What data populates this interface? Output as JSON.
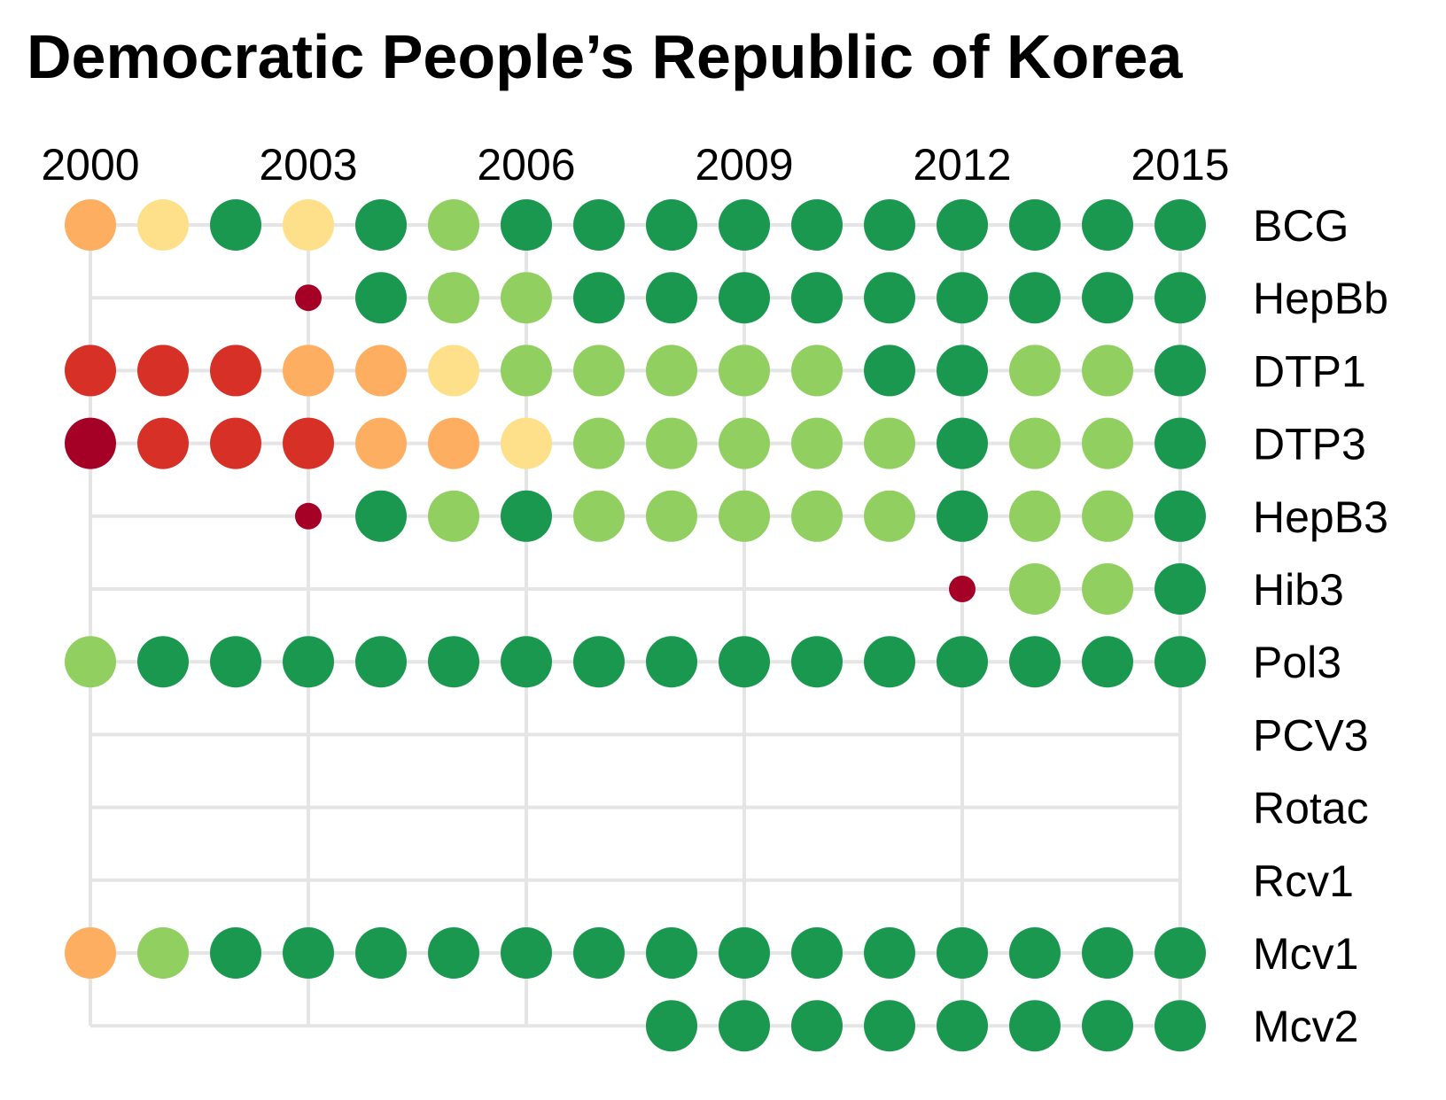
{
  "chart_data": {
    "type": "scatter",
    "title": "Democratic People’s Republic of Korea",
    "x_ticks": [
      "2000",
      "2003",
      "2006",
      "2009",
      "2012",
      "2015"
    ],
    "years": [
      2000,
      2001,
      2002,
      2003,
      2004,
      2005,
      2006,
      2007,
      2008,
      2009,
      2010,
      2011,
      2012,
      2013,
      2014,
      2015
    ],
    "grid": true,
    "colors": {
      "small": "#a50026",
      "red": "#d73027",
      "orange": "#fdae61",
      "yellow": "#fee08b",
      "lightgreen": "#91cf60",
      "green": "#1a9850",
      "gridline": "#e5e5e5"
    },
    "series": [
      {
        "name": "BCG",
        "values": [
          "orange",
          "yellow",
          "green",
          "yellow",
          "green",
          "lightgreen",
          "green",
          "green",
          "green",
          "green",
          "green",
          "green",
          "green",
          "green",
          "green",
          "green"
        ]
      },
      {
        "name": "HepBb",
        "values": [
          null,
          null,
          null,
          "small",
          "green",
          "lightgreen",
          "lightgreen",
          "green",
          "green",
          "green",
          "green",
          "green",
          "green",
          "green",
          "green",
          "green"
        ]
      },
      {
        "name": "DTP1",
        "values": [
          "red",
          "red",
          "red",
          "orange",
          "orange",
          "yellow",
          "lightgreen",
          "lightgreen",
          "lightgreen",
          "lightgreen",
          "lightgreen",
          "green",
          "green",
          "lightgreen",
          "lightgreen",
          "green"
        ]
      },
      {
        "name": "DTP3",
        "values": [
          "darkred",
          "red",
          "red",
          "red",
          "orange",
          "orange",
          "yellow",
          "lightgreen",
          "lightgreen",
          "lightgreen",
          "lightgreen",
          "lightgreen",
          "green",
          "lightgreen",
          "lightgreen",
          "green"
        ]
      },
      {
        "name": "HepB3",
        "values": [
          null,
          null,
          null,
          "small",
          "green",
          "lightgreen",
          "green",
          "lightgreen",
          "lightgreen",
          "lightgreen",
          "lightgreen",
          "lightgreen",
          "green",
          "lightgreen",
          "lightgreen",
          "green"
        ]
      },
      {
        "name": "Hib3",
        "values": [
          null,
          null,
          null,
          null,
          null,
          null,
          null,
          null,
          null,
          null,
          null,
          null,
          "small",
          "lightgreen",
          "lightgreen",
          "green"
        ]
      },
      {
        "name": "Pol3",
        "values": [
          "lightgreen",
          "green",
          "green",
          "green",
          "green",
          "green",
          "green",
          "green",
          "green",
          "green",
          "green",
          "green",
          "green",
          "green",
          "green",
          "green"
        ]
      },
      {
        "name": "PCV3",
        "values": [
          null,
          null,
          null,
          null,
          null,
          null,
          null,
          null,
          null,
          null,
          null,
          null,
          null,
          null,
          null,
          null
        ]
      },
      {
        "name": "Rotac",
        "values": [
          null,
          null,
          null,
          null,
          null,
          null,
          null,
          null,
          null,
          null,
          null,
          null,
          null,
          null,
          null,
          null
        ]
      },
      {
        "name": "Rcv1",
        "values": [
          null,
          null,
          null,
          null,
          null,
          null,
          null,
          null,
          null,
          null,
          null,
          null,
          null,
          null,
          null,
          null
        ]
      },
      {
        "name": "Mcv1",
        "values": [
          "orange",
          "lightgreen",
          "green",
          "green",
          "green",
          "green",
          "green",
          "green",
          "green",
          "green",
          "green",
          "green",
          "green",
          "green",
          "green",
          "green"
        ]
      },
      {
        "name": "Mcv2",
        "values": [
          null,
          null,
          null,
          null,
          null,
          null,
          null,
          null,
          "green",
          "green",
          "green",
          "green",
          "green",
          "green",
          "green",
          "green"
        ]
      }
    ]
  }
}
